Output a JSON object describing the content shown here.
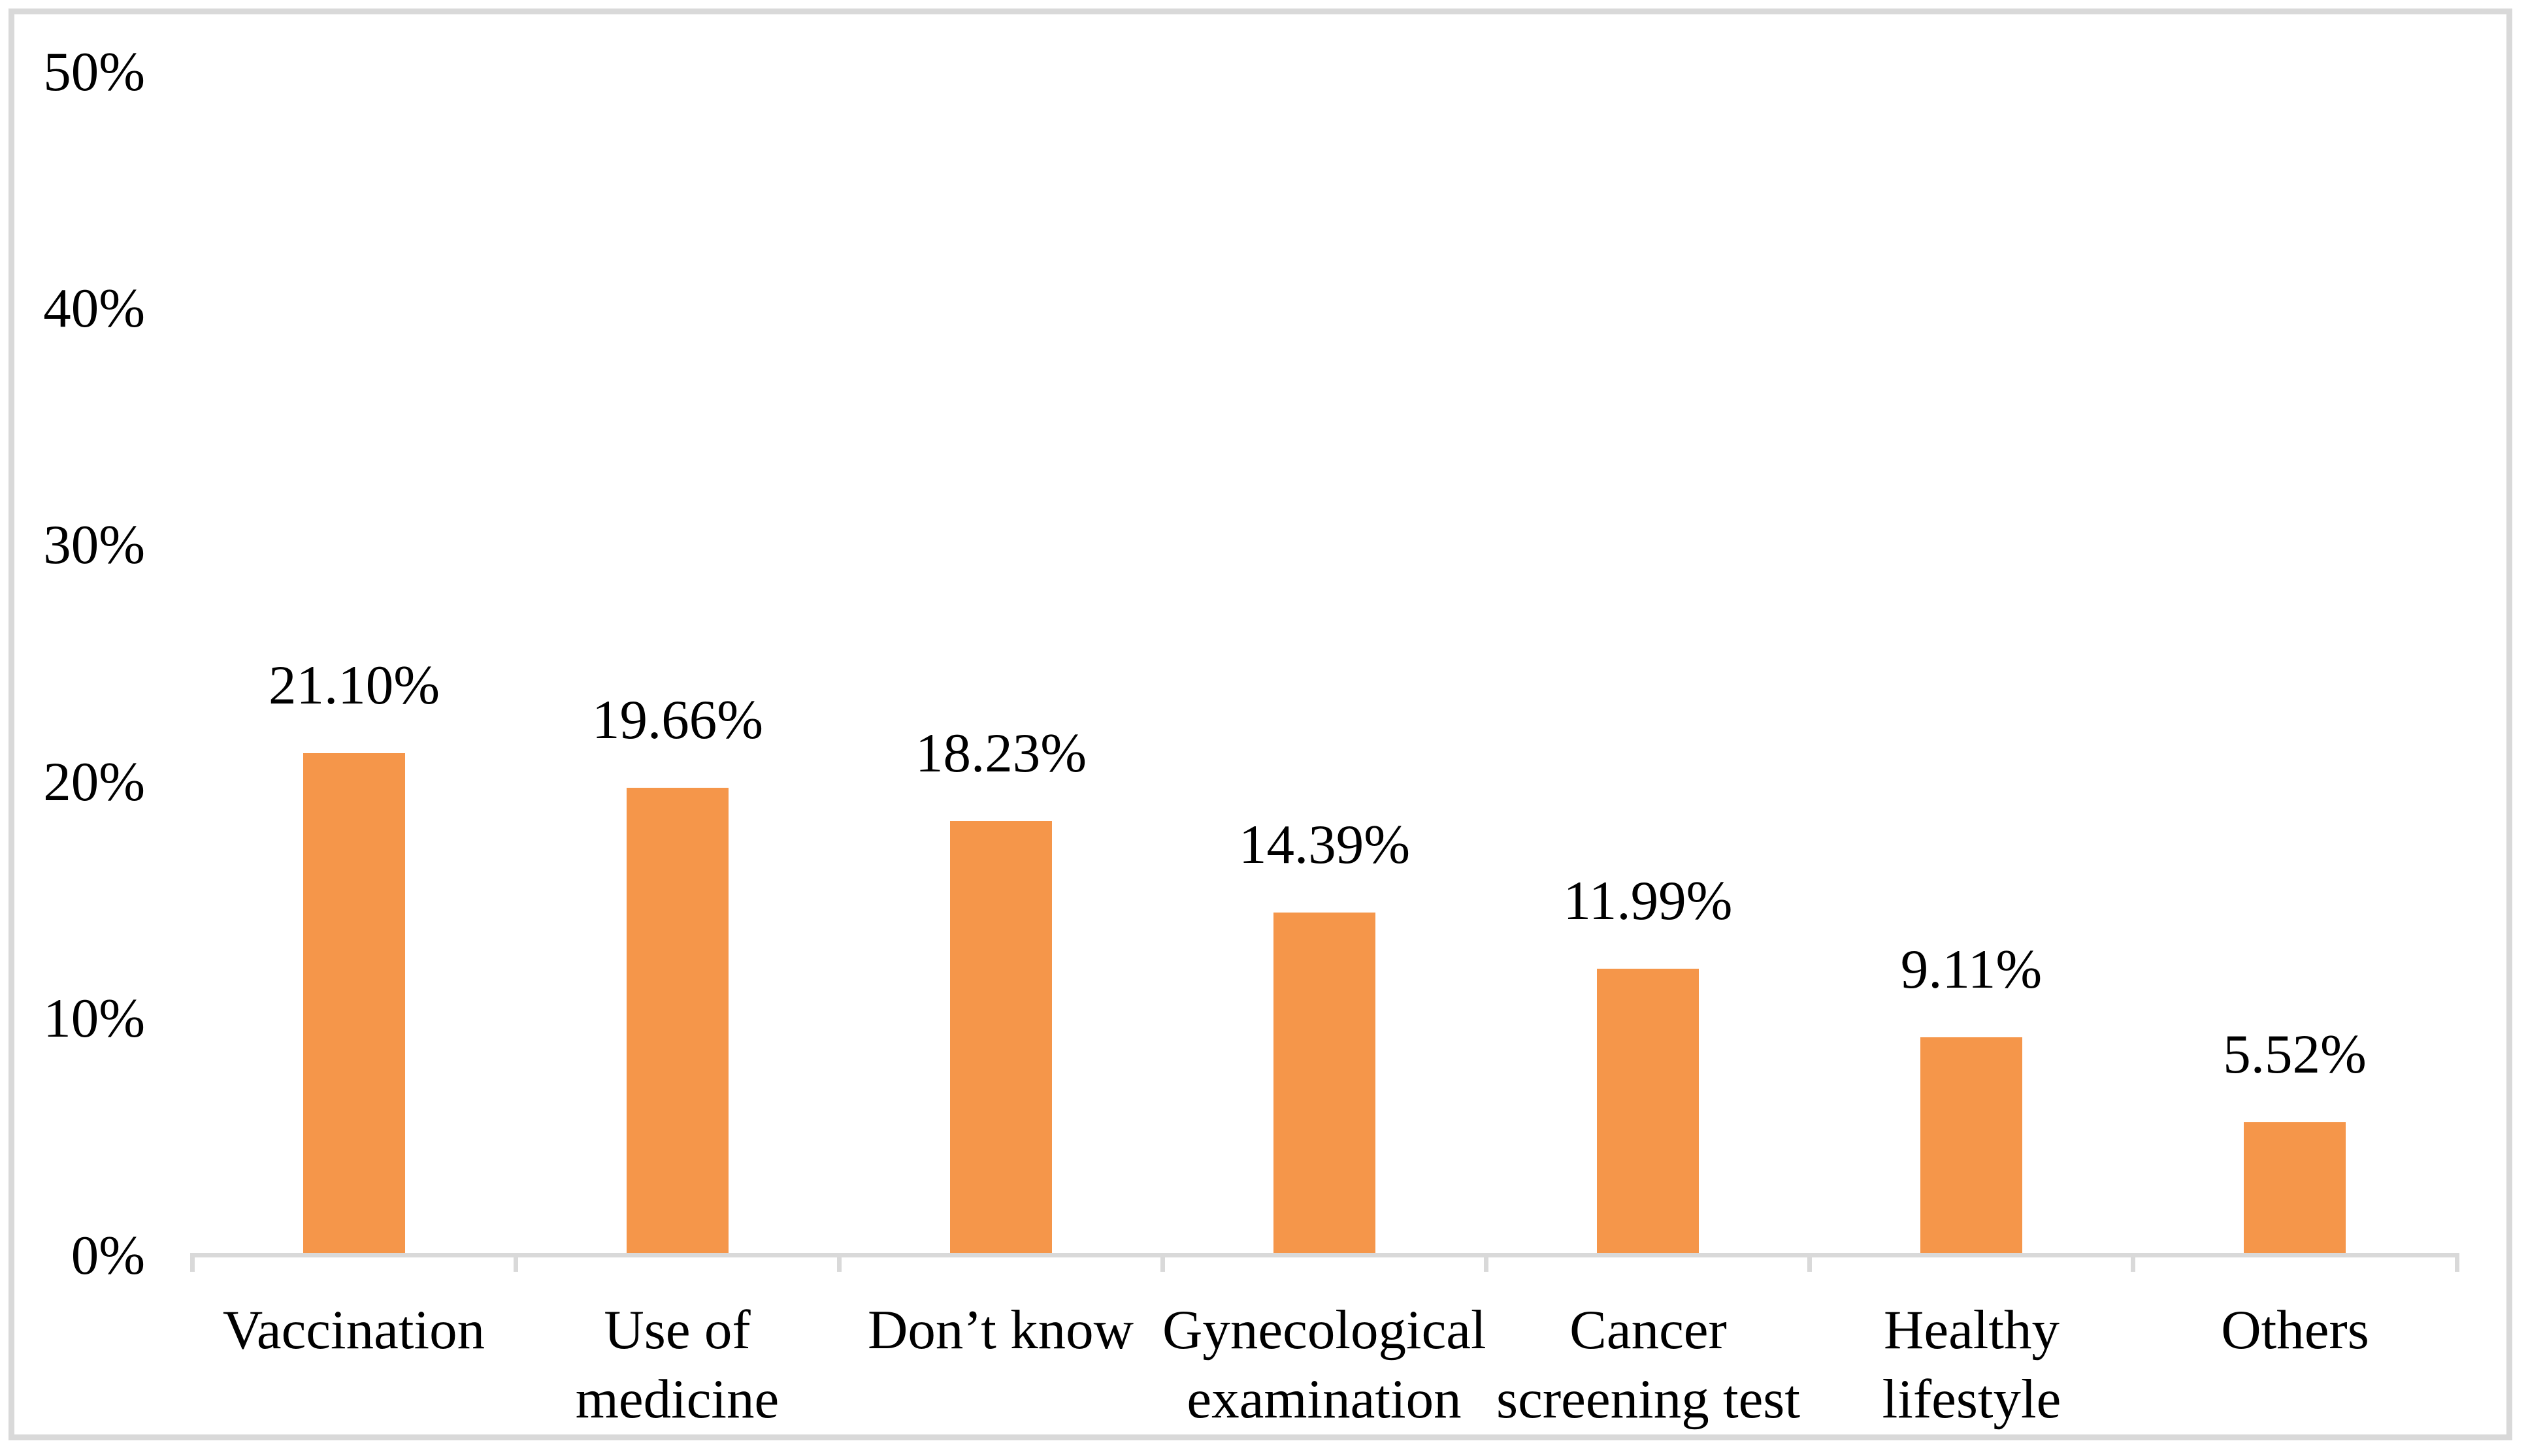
{
  "chart_data": {
    "type": "bar",
    "title": "",
    "xlabel": "",
    "ylabel": "",
    "categories": [
      "Vaccination",
      "Use of\nmedicine",
      "Don’t know",
      "Gynecological\nexamination",
      "Cancer\nscreening test",
      "Healthy\nlifestyle",
      "Others"
    ],
    "values": [
      21.1,
      19.66,
      18.23,
      14.39,
      11.99,
      9.11,
      5.52
    ],
    "data_labels": [
      "21.10%",
      "19.66%",
      "18.23%",
      "14.39%",
      "11.99%",
      "9.11%",
      "5.52%"
    ],
    "yticks": [
      "0%",
      "10%",
      "20%",
      "30%",
      "40%",
      "50%"
    ],
    "ylim": [
      0,
      50
    ],
    "grid": false,
    "legend": "none",
    "bar_color": "#F5964A",
    "axis_line_color": "#D9D9D9",
    "frame_border_color": "#D9D9D9",
    "text_color": "#000000",
    "background_color": "#FFFFFF"
  }
}
